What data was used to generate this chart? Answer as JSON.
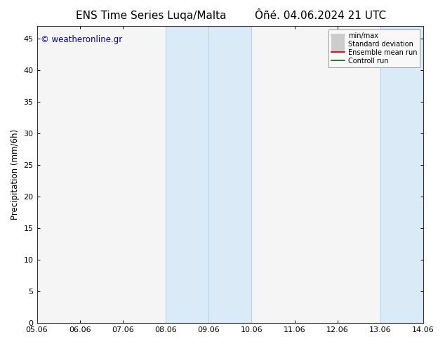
{
  "title_left": "ENS Time Series Luqa/Malta",
  "title_right": "Ôñé. 04.06.2024 21 UTC",
  "ylabel": "Precipitation (mm/6h)",
  "ylim": [
    0,
    47
  ],
  "yticks": [
    0,
    5,
    10,
    15,
    20,
    25,
    30,
    35,
    40,
    45
  ],
  "xtick_labels": [
    "05.06",
    "06.06",
    "07.06",
    "08.06",
    "09.06",
    "10.06",
    "11.06",
    "12.06",
    "13.06",
    "14.06"
  ],
  "xtick_positions": [
    0,
    1,
    2,
    3,
    4,
    5,
    6,
    7,
    8,
    9
  ],
  "xlim": [
    0,
    9
  ],
  "shaded_bands": [
    {
      "xmin": 3.0,
      "xmax": 5.0
    },
    {
      "xmin": 8.0,
      "xmax": 9.0
    }
  ],
  "band_color": "#daeaf7",
  "vline_color": "#b8d4e8",
  "bg_color": "#ffffff",
  "plot_bg_color": "#f5f5f5",
  "copyright_text": "© weatheronline.gr",
  "copyright_color": "#0000cc",
  "copyright_fontsize": 8.5,
  "legend_entries": [
    {
      "label": "min/max",
      "color": "#aaaaaa",
      "lw": 1.2
    },
    {
      "label": "Standard deviation",
      "color": "#cccccc",
      "lw": 5
    },
    {
      "label": "Ensemble mean run",
      "color": "#cc0000",
      "lw": 1.2
    },
    {
      "label": "Controll run",
      "color": "#006600",
      "lw": 1.2
    }
  ],
  "title_fontsize": 11,
  "axis_fontsize": 8.5,
  "tick_fontsize": 8
}
